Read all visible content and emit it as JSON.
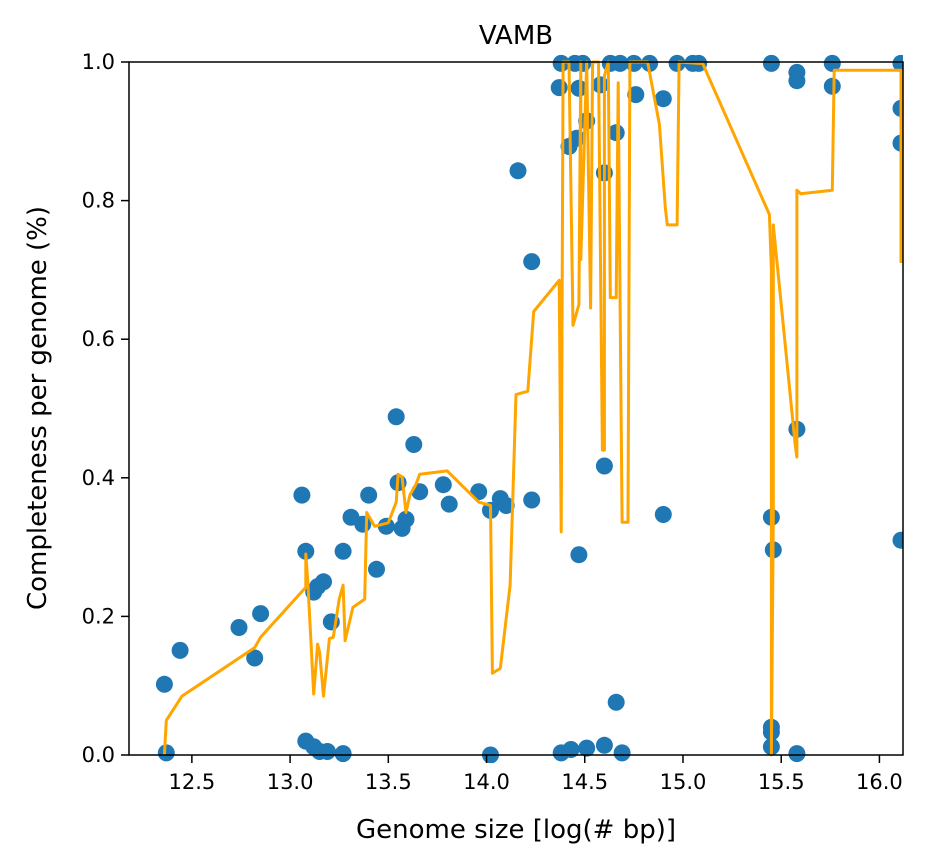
{
  "chart_data": {
    "type": "scatter",
    "title": "VAMB",
    "xlabel": "Genome size [log(# bp)]",
    "ylabel": "Completeness per genome (%)",
    "xlim": [
      12.18,
      16.12
    ],
    "ylim": [
      0.0,
      1.0
    ],
    "xticks": [
      "12.5",
      "13.0",
      "13.5",
      "14.0",
      "14.5",
      "15.0",
      "15.5",
      "16.0"
    ],
    "xtick_values": [
      12.5,
      13.0,
      13.5,
      14.0,
      14.5,
      15.0,
      15.5,
      16.0
    ],
    "yticks": [
      "0.0",
      "0.2",
      "0.4",
      "0.6",
      "0.8",
      "1.0"
    ],
    "ytick_values": [
      0.0,
      0.2,
      0.4,
      0.6,
      0.8,
      1.0
    ],
    "grid": false,
    "series": [
      {
        "type": "scatter",
        "color": "#1f77b4",
        "points": [
          [
            12.36,
            0.102
          ],
          [
            12.37,
            0.003
          ],
          [
            12.44,
            0.151
          ],
          [
            12.74,
            0.184
          ],
          [
            12.82,
            0.14
          ],
          [
            12.85,
            0.204
          ],
          [
            13.06,
            0.375
          ],
          [
            13.08,
            0.294
          ],
          [
            13.08,
            0.02
          ],
          [
            13.12,
            0.235
          ],
          [
            13.12,
            0.012
          ],
          [
            13.14,
            0.243
          ],
          [
            13.15,
            0.005
          ],
          [
            13.17,
            0.25
          ],
          [
            13.19,
            0.005
          ],
          [
            13.21,
            0.192
          ],
          [
            13.27,
            0.294
          ],
          [
            13.27,
            0.002
          ],
          [
            13.31,
            0.343
          ],
          [
            13.37,
            0.333
          ],
          [
            13.4,
            0.375
          ],
          [
            13.44,
            0.268
          ],
          [
            13.49,
            0.33
          ],
          [
            13.54,
            0.488
          ],
          [
            13.55,
            0.393
          ],
          [
            13.57,
            0.327
          ],
          [
            13.59,
            0.34
          ],
          [
            13.63,
            0.448
          ],
          [
            13.66,
            0.38
          ],
          [
            13.78,
            0.39
          ],
          [
            13.81,
            0.362
          ],
          [
            13.96,
            0.38
          ],
          [
            14.02,
            0.353
          ],
          [
            14.02,
            0.0
          ],
          [
            14.07,
            0.37
          ],
          [
            14.1,
            0.36
          ],
          [
            14.16,
            0.843
          ],
          [
            14.23,
            0.712
          ],
          [
            14.23,
            0.368
          ],
          [
            14.37,
            0.963
          ],
          [
            14.38,
            0.998
          ],
          [
            14.38,
            0.003
          ],
          [
            14.42,
            0.878
          ],
          [
            14.43,
            0.008
          ],
          [
            14.45,
            0.998
          ],
          [
            14.46,
            0.89
          ],
          [
            14.47,
            0.962
          ],
          [
            14.47,
            0.289
          ],
          [
            14.49,
            0.998
          ],
          [
            14.51,
            0.915
          ],
          [
            14.51,
            0.01
          ],
          [
            14.58,
            0.967
          ],
          [
            14.6,
            0.84
          ],
          [
            14.6,
            0.417
          ],
          [
            14.6,
            0.014
          ],
          [
            14.63,
            0.998
          ],
          [
            14.66,
            0.898
          ],
          [
            14.66,
            0.076
          ],
          [
            14.68,
            0.998
          ],
          [
            14.69,
            0.003
          ],
          [
            14.75,
            0.998
          ],
          [
            14.76,
            0.953
          ],
          [
            14.83,
            0.998
          ],
          [
            14.9,
            0.947
          ],
          [
            14.9,
            0.347
          ],
          [
            14.97,
            0.998
          ],
          [
            15.05,
            0.998
          ],
          [
            15.08,
            0.998
          ],
          [
            15.45,
            0.998
          ],
          [
            15.45,
            0.343
          ],
          [
            15.45,
            0.04
          ],
          [
            15.45,
            0.033
          ],
          [
            15.45,
            0.012
          ],
          [
            15.46,
            0.296
          ],
          [
            15.58,
            0.985
          ],
          [
            15.58,
            0.973
          ],
          [
            15.58,
            0.47
          ],
          [
            15.58,
            0.002
          ],
          [
            15.76,
            0.998
          ],
          [
            15.76,
            0.965
          ],
          [
            16.11,
            0.998
          ],
          [
            16.11,
            0.933
          ],
          [
            16.11,
            0.883
          ],
          [
            16.11,
            0.31
          ]
        ]
      },
      {
        "type": "line",
        "color": "#ffa500",
        "points": [
          [
            12.36,
            0.0
          ],
          [
            12.37,
            0.05
          ],
          [
            12.45,
            0.085
          ],
          [
            12.82,
            0.155
          ],
          [
            12.85,
            0.17
          ],
          [
            13.08,
            0.242
          ],
          [
            13.08,
            0.29
          ],
          [
            13.09,
            0.25
          ],
          [
            13.12,
            0.088
          ],
          [
            13.14,
            0.16
          ],
          [
            13.15,
            0.148
          ],
          [
            13.17,
            0.085
          ],
          [
            13.2,
            0.168
          ],
          [
            13.22,
            0.17
          ],
          [
            13.25,
            0.225
          ],
          [
            13.27,
            0.245
          ],
          [
            13.28,
            0.165
          ],
          [
            13.32,
            0.213
          ],
          [
            13.38,
            0.225
          ],
          [
            13.39,
            0.35
          ],
          [
            13.43,
            0.33
          ],
          [
            13.5,
            0.335
          ],
          [
            13.54,
            0.365
          ],
          [
            13.55,
            0.405
          ],
          [
            13.57,
            0.401
          ],
          [
            13.59,
            0.35
          ],
          [
            13.61,
            0.375
          ],
          [
            13.64,
            0.39
          ],
          [
            13.66,
            0.405
          ],
          [
            13.8,
            0.41
          ],
          [
            13.96,
            0.365
          ],
          [
            14.02,
            0.36
          ],
          [
            14.03,
            0.118
          ],
          [
            14.07,
            0.125
          ],
          [
            14.12,
            0.245
          ],
          [
            14.15,
            0.52
          ],
          [
            14.21,
            0.525
          ],
          [
            14.24,
            0.64
          ],
          [
            14.37,
            0.685
          ],
          [
            14.38,
            0.322
          ],
          [
            14.39,
            1.0
          ],
          [
            14.42,
            1.0
          ],
          [
            14.44,
            0.62
          ],
          [
            14.47,
            0.65
          ],
          [
            14.48,
            1.0
          ],
          [
            14.48,
            0.715
          ],
          [
            14.51,
            1.0
          ],
          [
            14.53,
            0.645
          ],
          [
            14.54,
            1.0
          ],
          [
            14.57,
            1.0
          ],
          [
            14.59,
            0.44
          ],
          [
            14.6,
            0.44
          ],
          [
            14.6,
            0.98
          ],
          [
            14.62,
            1.0
          ],
          [
            14.63,
            0.66
          ],
          [
            14.66,
            0.66
          ],
          [
            14.67,
            0.97
          ],
          [
            14.68,
            0.65
          ],
          [
            14.69,
            0.336
          ],
          [
            14.72,
            0.336
          ],
          [
            14.73,
            1.0
          ],
          [
            14.82,
            1.0
          ],
          [
            14.88,
            0.91
          ],
          [
            14.91,
            0.79
          ],
          [
            14.92,
            0.765
          ],
          [
            14.97,
            0.765
          ],
          [
            14.98,
            1.0
          ],
          [
            15.08,
            0.998
          ],
          [
            15.1,
            0.998
          ],
          [
            15.44,
            0.78
          ],
          [
            15.45,
            0.7
          ],
          [
            15.45,
            0.0
          ],
          [
            15.46,
            0.35
          ],
          [
            15.46,
            0.765
          ],
          [
            15.57,
            0.45
          ],
          [
            15.58,
            0.43
          ],
          [
            15.58,
            0.815
          ],
          [
            15.6,
            0.81
          ],
          [
            15.76,
            0.815
          ],
          [
            15.77,
            0.988
          ],
          [
            16.11,
            0.988
          ],
          [
            16.11,
            0.71
          ]
        ]
      }
    ]
  }
}
